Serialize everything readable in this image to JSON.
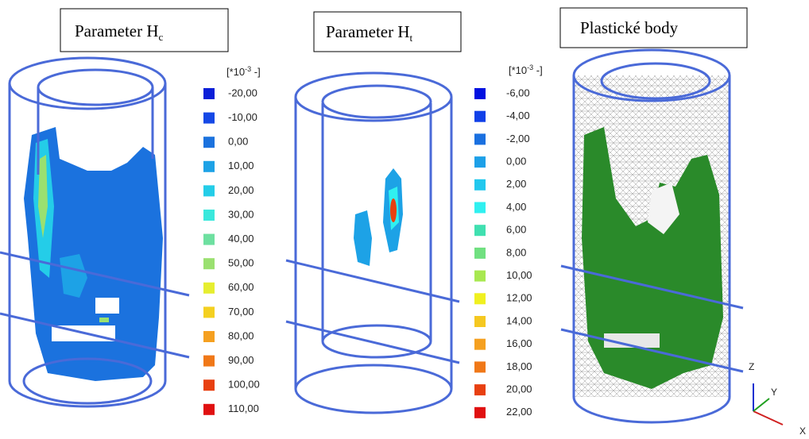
{
  "panels": [
    {
      "title": "Parameter H",
      "title_sub": "c",
      "unit_prefix": "[*10",
      "unit_exp": "-3",
      "unit_suffix": " -]",
      "legend": [
        {
          "label": "-20,00",
          "color": "#0b1fd8"
        },
        {
          "label": "-10,00",
          "color": "#1548e6"
        },
        {
          "label": "0,00",
          "color": "#1b72de"
        },
        {
          "label": "10,00",
          "color": "#1da2e6"
        },
        {
          "label": "20,00",
          "color": "#24cde8"
        },
        {
          "label": "30,00",
          "color": "#3ae8dc"
        },
        {
          "label": "40,00",
          "color": "#6ee0a0"
        },
        {
          "label": "50,00",
          "color": "#9ae070"
        },
        {
          "label": "60,00",
          "color": "#e6ee30"
        },
        {
          "label": "70,00",
          "color": "#f4d020"
        },
        {
          "label": "80,00",
          "color": "#f5a020"
        },
        {
          "label": "90,00",
          "color": "#f07818"
        },
        {
          "label": "100,00",
          "color": "#e84010"
        },
        {
          "label": "110,00",
          "color": "#e01010"
        }
      ]
    },
    {
      "title": "Parameter H",
      "title_sub": "t",
      "unit_prefix": "[*10",
      "unit_exp": "-3",
      "unit_suffix": " -]",
      "legend": [
        {
          "label": "-6,00",
          "color": "#0010e0"
        },
        {
          "label": "-4,00",
          "color": "#1040e8"
        },
        {
          "label": "-2,00",
          "color": "#1a70e0"
        },
        {
          "label": "0,00",
          "color": "#1da0e8"
        },
        {
          "label": "2,00",
          "color": "#22c8ee"
        },
        {
          "label": "4,00",
          "color": "#30f0f0"
        },
        {
          "label": "6,00",
          "color": "#40e0b0"
        },
        {
          "label": "8,00",
          "color": "#70e080"
        },
        {
          "label": "10,00",
          "color": "#a8e850"
        },
        {
          "label": "12,00",
          "color": "#f0f020"
        },
        {
          "label": "14,00",
          "color": "#f5c820"
        },
        {
          "label": "16,00",
          "color": "#f5a020"
        },
        {
          "label": "18,00",
          "color": "#f07818"
        },
        {
          "label": "20,00",
          "color": "#e84010"
        },
        {
          "label": "22,00",
          "color": "#e01010"
        }
      ]
    },
    {
      "title": "Plastické body",
      "axes": [
        "Z",
        "Y",
        "X"
      ]
    }
  ]
}
